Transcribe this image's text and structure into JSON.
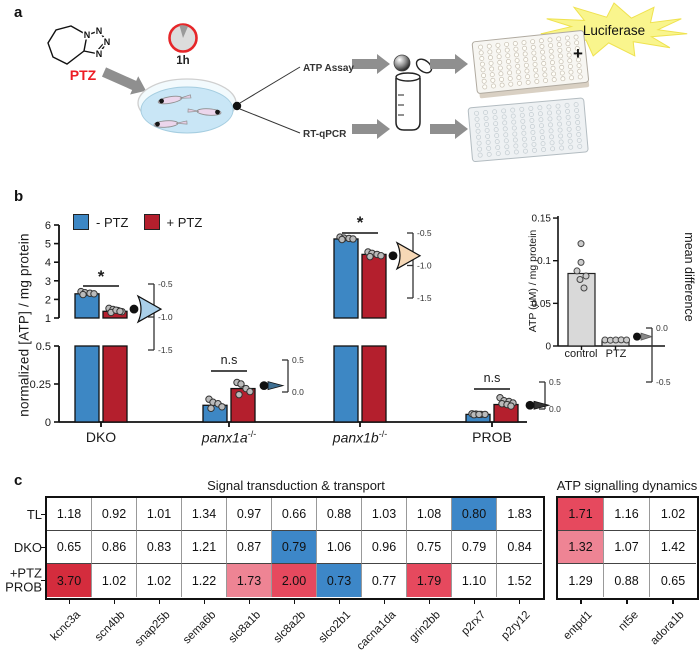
{
  "figure": {
    "panel_a_label": "a",
    "panel_b_label": "b",
    "panel_c_label": "c"
  },
  "panel_a": {
    "compound": "PTZ",
    "incubation": "1h",
    "assay_top": "ATP Assay",
    "assay_bottom": "RT-qPCR",
    "enzyme": "Luciferase",
    "plus": "+",
    "molecule_atoms": [
      "N",
      "N",
      "N",
      "N"
    ],
    "colors": {
      "compound_text": "#ed1c24",
      "timer_ring": "#e62629",
      "dish_water": "#c9e6f6",
      "starburst": "#f9f58d",
      "arrow": "#8f8f8f"
    }
  },
  "chart_data": {
    "panel_b": {
      "type": "bar",
      "ylabel": "normalized [ATP] / mg protein",
      "legend": [
        {
          "label": "- PTZ",
          "color": "#3d87c4"
        },
        {
          "label": "+ PTZ",
          "color": "#b41f2d"
        }
      ],
      "top_axis": {
        "ticks": [
          "6",
          "5",
          "4",
          "3",
          "2",
          "1"
        ],
        "range": [
          1,
          6
        ]
      },
      "bottom_axis": {
        "ticks": [
          "0.5",
          "0.25",
          "0"
        ],
        "range": [
          0,
          0.5
        ]
      },
      "groups": [
        {
          "label": "DKO",
          "sup": "",
          "italic": false,
          "significance": "*",
          "segment": "top",
          "bars": {
            "minus": 2.3,
            "plus": 1.36
          },
          "points": {
            "minus": [
              2.42,
              2.36,
              2.33,
              2.3,
              2.26
            ],
            "plus": [
              1.52,
              1.46,
              1.4,
              1.34,
              1.3,
              1.42,
              1.36
            ]
          },
          "mean_difference": {
            "ticks": [
              "-0.5",
              "-1.0",
              "-1.5"
            ],
            "value": -0.88,
            "shape": "eye",
            "fill": "#a9cfe9"
          }
        },
        {
          "label": "panx1a",
          "sup": "-/-",
          "italic": true,
          "significance": "n.s",
          "segment": "bottom",
          "bars": {
            "minus": 0.11,
            "plus": 0.22
          },
          "points": {
            "minus": [
              0.15,
              0.13,
              0.12,
              0.1,
              0.09
            ],
            "plus": [
              0.26,
              0.25,
              0.22,
              0.2,
              0.18
            ]
          },
          "mean_difference": {
            "ticks": [
              "0.5",
              "0.0"
            ],
            "value": 0.1,
            "shape": "sliver",
            "fill": "#3f6f92"
          }
        },
        {
          "label": "panx1b",
          "sup": "-/-",
          "italic": true,
          "significance": "*",
          "segment": "top",
          "bars": {
            "minus": 5.25,
            "plus": 4.42
          },
          "points": {
            "minus": [
              5.35,
              5.3,
              5.28,
              5.25,
              5.22
            ],
            "plus": [
              4.55,
              4.48,
              4.42,
              4.35,
              4.3
            ]
          },
          "mean_difference": {
            "ticks": [
              "-0.5",
              "-1.0",
              "-1.5"
            ],
            "value": -0.85,
            "shape": "eye",
            "fill": "#f6d8b6"
          }
        },
        {
          "label": "PROB",
          "sup": "",
          "italic": false,
          "significance": "n.s",
          "segment": "bottom",
          "bars": {
            "minus": 0.05,
            "plus": 0.115
          },
          "points": {
            "minus": [
              0.054,
              0.052,
              0.05,
              0.05,
              0.048,
              0.05
            ],
            "plus": [
              0.16,
              0.14,
              0.135,
              0.125,
              0.12,
              0.115,
              0.105
            ]
          },
          "mean_difference": {
            "ticks": [
              "0.5",
              "0.0"
            ],
            "value": 0.07,
            "shape": "sliver",
            "fill": "#333333"
          }
        }
      ],
      "inset": {
        "ylabel": "ATP (μM) / mg protein",
        "right_label": "mean difference",
        "yticks": [
          "0",
          "0.05",
          "0.1",
          "0.15"
        ],
        "categories": [
          "control",
          "PTZ"
        ],
        "values": [
          0.085,
          0.007
        ],
        "points": [
          [
            0.12,
            0.098,
            0.088,
            0.082,
            0.078,
            0.068
          ],
          [
            0.007,
            0.0068,
            0.007,
            0.0072,
            0.007
          ]
        ],
        "bar_color": "#d9d9d9",
        "mean_difference": {
          "ticks": [
            "0.0",
            "-0.5"
          ],
          "value": -0.08
        }
      }
    },
    "heatmap": {
      "type": "heatmap",
      "palette": {
        "w": "#ffffff",
        "b": "#3d87c8",
        "r1": "#ee8494",
        "r2": "#e6495e",
        "r3": "#d42c3d"
      },
      "row_labels": [
        [
          "TL"
        ],
        [
          "DKO"
        ],
        [
          "+PTZ",
          "PROB"
        ]
      ],
      "blocks": [
        {
          "title": "Signal transduction & transport",
          "genes": [
            "kcnc3a",
            "scn4bb",
            "snap25b",
            "sema6b",
            "slc8a1b",
            "slc8a2b",
            "slco2b1",
            "cacna1da",
            "grin2bb",
            "p2rx7",
            "p2ry12"
          ],
          "rows": [
            {
              "values": [
                "1.18",
                "0.92",
                "1.01",
                "1.34",
                "0.97",
                "0.66",
                "0.88",
                "1.03",
                "1.08",
                "0.80",
                "1.83"
              ],
              "colors": [
                "w",
                "w",
                "w",
                "w",
                "w",
                "w",
                "w",
                "w",
                "w",
                "b",
                "w"
              ]
            },
            {
              "values": [
                "0.65",
                "0.86",
                "0.83",
                "1.21",
                "0.87",
                "0.79",
                "1.06",
                "0.96",
                "0.75",
                "0.79",
                "0.84"
              ],
              "colors": [
                "w",
                "w",
                "w",
                "w",
                "w",
                "b",
                "w",
                "w",
                "w",
                "w",
                "w"
              ]
            },
            {
              "values": [
                "3.70",
                "1.02",
                "1.02",
                "1.22",
                "1.73",
                "2.00",
                "0.73",
                "0.77",
                "1.79",
                "1.10",
                "1.52"
              ],
              "colors": [
                "r3",
                "w",
                "w",
                "w",
                "r1",
                "r2",
                "b",
                "w",
                "r2",
                "w",
                "w"
              ]
            }
          ]
        },
        {
          "title": "ATP signalling dynamics",
          "genes": [
            "entpd1",
            "nt5e",
            "adora1b"
          ],
          "rows": [
            {
              "values": [
                "1.71",
                "1.16",
                "1.02"
              ],
              "colors": [
                "r2",
                "w",
                "w"
              ]
            },
            {
              "values": [
                "1.32",
                "1.07",
                "1.42"
              ],
              "colors": [
                "r1",
                "w",
                "w"
              ]
            },
            {
              "values": [
                "1.29",
                "0.88",
                "0.65"
              ],
              "colors": [
                "w",
                "w",
                "w"
              ]
            }
          ]
        }
      ]
    }
  }
}
